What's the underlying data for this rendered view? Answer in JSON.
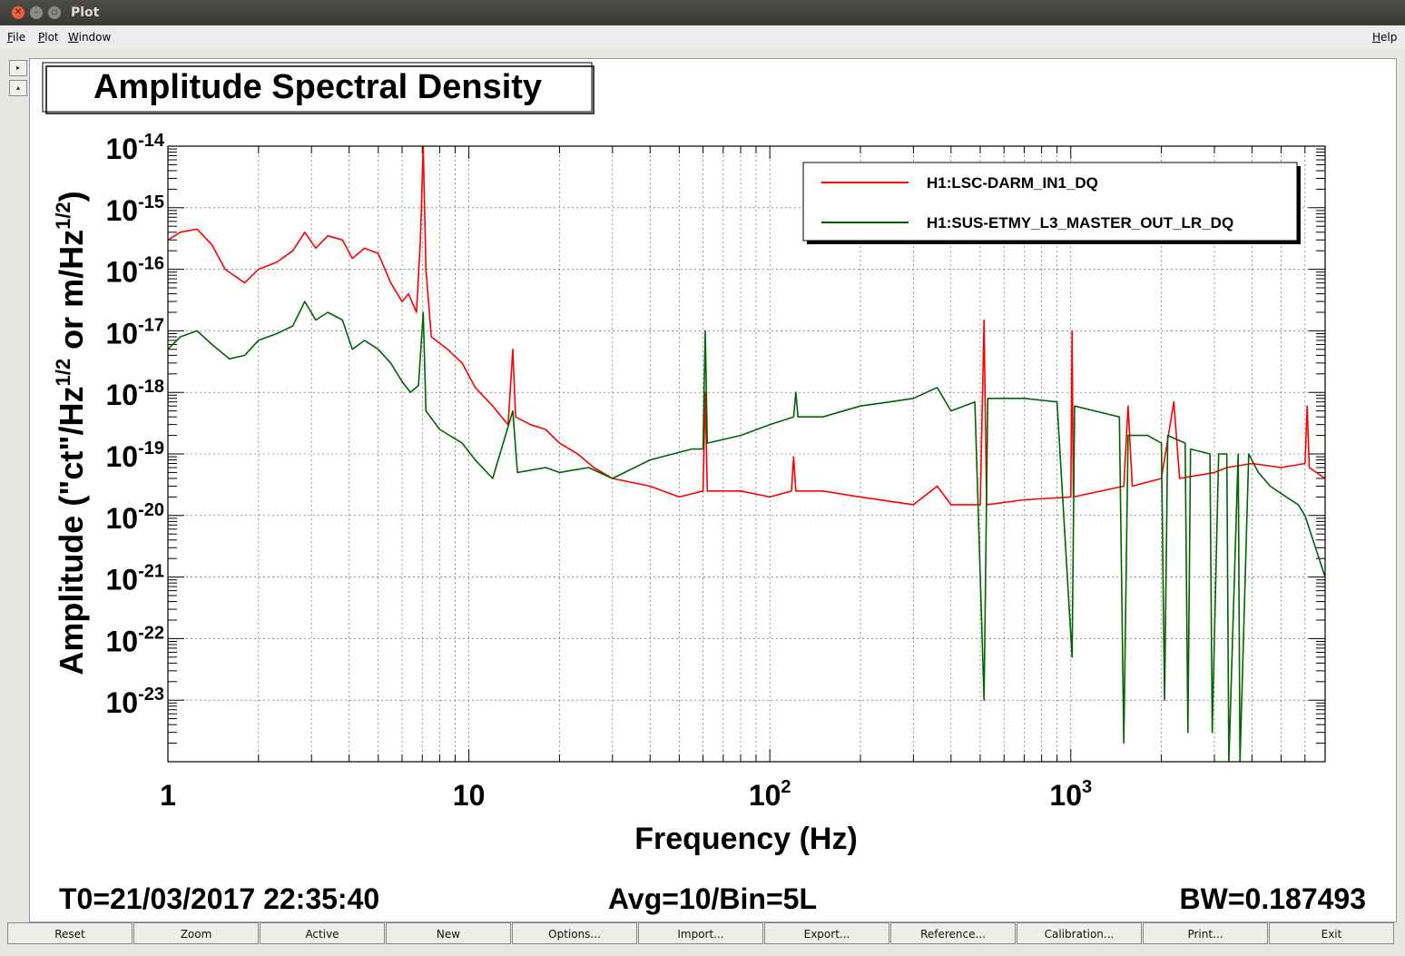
{
  "window": {
    "title": "Plot"
  },
  "menu": {
    "file": "File",
    "plot": "Plot",
    "window": "Window",
    "help": "Help"
  },
  "side_buttons": [
    "▸",
    "▴"
  ],
  "footer_info": {
    "t0": "T0=21/03/2017 22:35:40",
    "avg": "Avg=10/Bin=5L",
    "bw": "BW=0.187493"
  },
  "buttons": [
    "Reset",
    "Zoom",
    "Active",
    "New",
    "Options...",
    "Import...",
    "Export...",
    "Reference...",
    "Calibration...",
    "Print...",
    "Exit"
  ],
  "chart_data": {
    "type": "line",
    "title": "Amplitude Spectral Density",
    "xlabel": "Frequency (Hz)",
    "ylabel": "Amplitude (\"ct\"/Hz^1/2 or m/Hz^1/2)",
    "xscale": "log",
    "yscale": "log",
    "xlim": [
      1,
      7000
    ],
    "ylim": [
      1e-24,
      1e-14
    ],
    "grid": true,
    "legend_position": "top-right",
    "x_tick_labels": [
      {
        "value": 1,
        "base": "1",
        "exp": ""
      },
      {
        "value": 10,
        "base": "10",
        "exp": ""
      },
      {
        "value": 100,
        "base": "10",
        "exp": "2"
      },
      {
        "value": 1000,
        "base": "10",
        "exp": "3"
      }
    ],
    "y_tick_labels": [
      {
        "value": 1e-14,
        "base": "10",
        "exp": "-14"
      },
      {
        "value": 1e-15,
        "base": "10",
        "exp": "-15"
      },
      {
        "value": 1e-16,
        "base": "10",
        "exp": "-16"
      },
      {
        "value": 1e-17,
        "base": "10",
        "exp": "-17"
      },
      {
        "value": 1e-18,
        "base": "10",
        "exp": "-18"
      },
      {
        "value": 1e-19,
        "base": "10",
        "exp": "-19"
      },
      {
        "value": 1e-20,
        "base": "10",
        "exp": "-20"
      },
      {
        "value": 1e-21,
        "base": "10",
        "exp": "-21"
      },
      {
        "value": 1e-22,
        "base": "10",
        "exp": "-22"
      },
      {
        "value": 1e-23,
        "base": "10",
        "exp": "-23"
      }
    ],
    "series": [
      {
        "name": "H1:LSC-DARM_IN1_DQ",
        "color": "#ff0000",
        "points": [
          [
            1.0,
            3e-16
          ],
          [
            1.1,
            4e-16
          ],
          [
            1.25,
            4.5e-16
          ],
          [
            1.4,
            2.5e-16
          ],
          [
            1.55,
            1e-16
          ],
          [
            1.8,
            6e-17
          ],
          [
            2.0,
            1e-16
          ],
          [
            2.3,
            1.3e-16
          ],
          [
            2.6,
            2e-16
          ],
          [
            2.85,
            4e-16
          ],
          [
            3.1,
            2.2e-16
          ],
          [
            3.4,
            3.5e-16
          ],
          [
            3.8,
            3e-16
          ],
          [
            4.1,
            1.5e-16
          ],
          [
            4.5,
            2.2e-16
          ],
          [
            5.0,
            1.8e-16
          ],
          [
            5.5,
            6e-17
          ],
          [
            6.0,
            3e-17
          ],
          [
            6.3,
            4e-17
          ],
          [
            6.7,
            2e-17
          ],
          [
            6.9,
            3e-16
          ],
          [
            7.05,
            1e-14
          ],
          [
            7.2,
            1e-16
          ],
          [
            7.5,
            8e-18
          ],
          [
            8.5,
            5e-18
          ],
          [
            9.5,
            3e-18
          ],
          [
            10.5,
            1.2e-18
          ],
          [
            12.0,
            6e-19
          ],
          [
            13.5,
            3e-19
          ],
          [
            14.0,
            5e-18
          ],
          [
            14.3,
            4e-19
          ],
          [
            16.0,
            3e-19
          ],
          [
            18.0,
            2.5e-19
          ],
          [
            20.0,
            1.5e-19
          ],
          [
            23.0,
            1e-19
          ],
          [
            26.0,
            6e-20
          ],
          [
            30.0,
            4e-20
          ],
          [
            40.0,
            3e-20
          ],
          [
            50.0,
            2e-20
          ],
          [
            60.0,
            2.5e-20
          ],
          [
            61.0,
            1e-18
          ],
          [
            62.0,
            2.5e-20
          ],
          [
            80.0,
            2.5e-20
          ],
          [
            100.0,
            2e-20
          ],
          [
            118.0,
            2.5e-20
          ],
          [
            120.0,
            9e-20
          ],
          [
            122.0,
            2.5e-20
          ],
          [
            150.0,
            2.5e-20
          ],
          [
            200.0,
            2e-20
          ],
          [
            300.0,
            1.5e-20
          ],
          [
            360.0,
            3e-20
          ],
          [
            400.0,
            1.5e-20
          ],
          [
            500.0,
            1.5e-20
          ],
          [
            515.0,
            1.5e-17
          ],
          [
            525.0,
            1.5e-20
          ],
          [
            700.0,
            1.8e-20
          ],
          [
            1000.0,
            2e-20
          ],
          [
            1010.0,
            1e-17
          ],
          [
            1020.0,
            2e-20
          ],
          [
            1500.0,
            3e-20
          ],
          [
            1550.0,
            6e-19
          ],
          [
            1600.0,
            3e-20
          ],
          [
            2000.0,
            4e-20
          ],
          [
            2200.0,
            7e-19
          ],
          [
            2300.0,
            4e-20
          ],
          [
            3000.0,
            5e-20
          ],
          [
            3300.0,
            6e-20
          ],
          [
            4000.0,
            7e-20
          ],
          [
            5000.0,
            6e-20
          ],
          [
            6000.0,
            7e-20
          ],
          [
            6100.0,
            6e-19
          ],
          [
            6200.0,
            6e-20
          ],
          [
            7000.0,
            4e-20
          ]
        ]
      },
      {
        "name": "H1:SUS-ETMY_L3_MASTER_OUT_LR_DQ",
        "color": "#006400",
        "points": [
          [
            1.0,
            5e-18
          ],
          [
            1.1,
            8e-18
          ],
          [
            1.25,
            1e-17
          ],
          [
            1.4,
            6e-18
          ],
          [
            1.6,
            3.5e-18
          ],
          [
            1.8,
            4e-18
          ],
          [
            2.0,
            7e-18
          ],
          [
            2.3,
            9e-18
          ],
          [
            2.6,
            1.2e-17
          ],
          [
            2.85,
            3e-17
          ],
          [
            3.1,
            1.5e-17
          ],
          [
            3.4,
            2e-17
          ],
          [
            3.8,
            1.5e-17
          ],
          [
            4.1,
            5e-18
          ],
          [
            4.5,
            7e-18
          ],
          [
            5.0,
            5e-18
          ],
          [
            5.5,
            3e-18
          ],
          [
            6.0,
            1.5e-18
          ],
          [
            6.4,
            1e-18
          ],
          [
            6.8,
            1.3e-18
          ],
          [
            7.05,
            2e-17
          ],
          [
            7.2,
            5e-19
          ],
          [
            8.0,
            2.5e-19
          ],
          [
            9.5,
            1.5e-19
          ],
          [
            10.5,
            8e-20
          ],
          [
            12.0,
            4e-20
          ],
          [
            14.0,
            5e-19
          ],
          [
            14.5,
            5e-20
          ],
          [
            18.0,
            6e-20
          ],
          [
            20.0,
            5e-20
          ],
          [
            25.0,
            6e-20
          ],
          [
            30.0,
            4e-20
          ],
          [
            40.0,
            8e-20
          ],
          [
            55.0,
            1.2e-19
          ],
          [
            60.0,
            1.2e-19
          ],
          [
            61.0,
            1e-17
          ],
          [
            62.0,
            1.5e-19
          ],
          [
            80.0,
            2e-19
          ],
          [
            100.0,
            3e-19
          ],
          [
            120.0,
            4e-19
          ],
          [
            122.0,
            1e-18
          ],
          [
            124.0,
            4e-19
          ],
          [
            150.0,
            4e-19
          ],
          [
            200.0,
            6e-19
          ],
          [
            250.0,
            7e-19
          ],
          [
            300.0,
            8e-19
          ],
          [
            360.0,
            1.2e-18
          ],
          [
            400.0,
            5e-19
          ],
          [
            480.0,
            7e-19
          ],
          [
            515.0,
            1e-23
          ],
          [
            530.0,
            8e-19
          ],
          [
            700.0,
            8e-19
          ],
          [
            900.0,
            7e-19
          ],
          [
            1010.0,
            5e-23
          ],
          [
            1030.0,
            6e-19
          ],
          [
            1200.0,
            5e-19
          ],
          [
            1450.0,
            4e-19
          ],
          [
            1500.0,
            2e-24
          ],
          [
            1550.0,
            2e-19
          ],
          [
            1800.0,
            2e-19
          ],
          [
            2000.0,
            1.5e-19
          ],
          [
            2050.0,
            1e-23
          ],
          [
            2100.0,
            2e-19
          ],
          [
            2400.0,
            1.5e-19
          ],
          [
            2450.0,
            3e-24
          ],
          [
            2500.0,
            1.2e-19
          ],
          [
            2900.0,
            1e-19
          ],
          [
            2950.0,
            3e-24
          ],
          [
            3100.0,
            1e-19
          ],
          [
            3300.0,
            1e-19
          ],
          [
            3350.0,
            1e-24
          ],
          [
            3600.0,
            1e-19
          ],
          [
            3650.0,
            1e-24
          ],
          [
            3900.0,
            1e-19
          ],
          [
            4200.0,
            5e-20
          ],
          [
            4600.0,
            3e-20
          ],
          [
            5200.0,
            2e-20
          ],
          [
            5700.0,
            1.5e-20
          ],
          [
            6000.0,
            1e-20
          ],
          [
            7000.0,
            1e-21
          ]
        ]
      }
    ]
  }
}
